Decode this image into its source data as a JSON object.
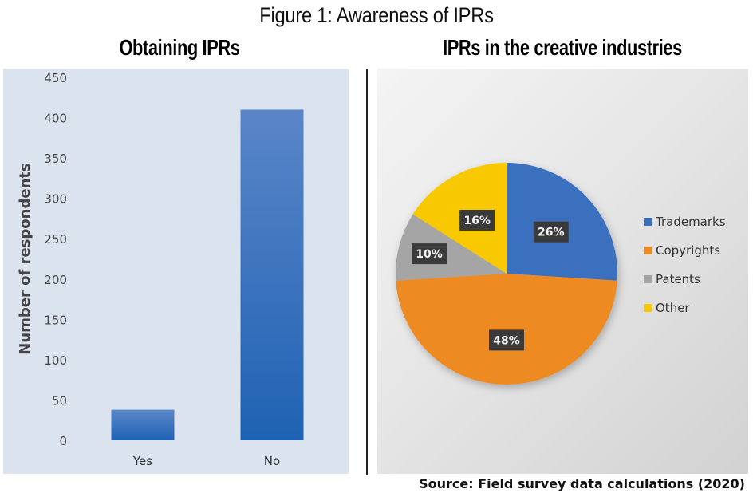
{
  "figure": {
    "title": "Figure 1: Awareness of IPRs",
    "source": "Source: Field survey data calculations (2020)"
  },
  "colors": {
    "bar": "#2e6bbd",
    "trademarks": "#3a6fbf",
    "copyrights": "#ed8a22",
    "patents": "#a5a5a5",
    "other": "#f8c800",
    "label_box": "#3a3a3a"
  },
  "chart_data": [
    {
      "type": "bar",
      "title": "Obtaining IPRs",
      "categories": [
        "Yes",
        "No"
      ],
      "values": [
        38,
        410
      ],
      "xlabel": "",
      "ylabel": "Number of respondents",
      "ylim": [
        0,
        450
      ],
      "yticks": [
        0,
        50,
        100,
        150,
        200,
        250,
        300,
        350,
        400,
        450
      ],
      "grid": false,
      "legend": null
    },
    {
      "type": "pie",
      "title": "IPRs in the creative industries",
      "categories": [
        "Trademarks",
        "Copyrights",
        "Patents",
        "Other"
      ],
      "values": [
        26,
        48,
        10,
        16
      ],
      "labels": [
        "26%",
        "48%",
        "10%",
        "16%"
      ],
      "legend_position": "right"
    }
  ]
}
